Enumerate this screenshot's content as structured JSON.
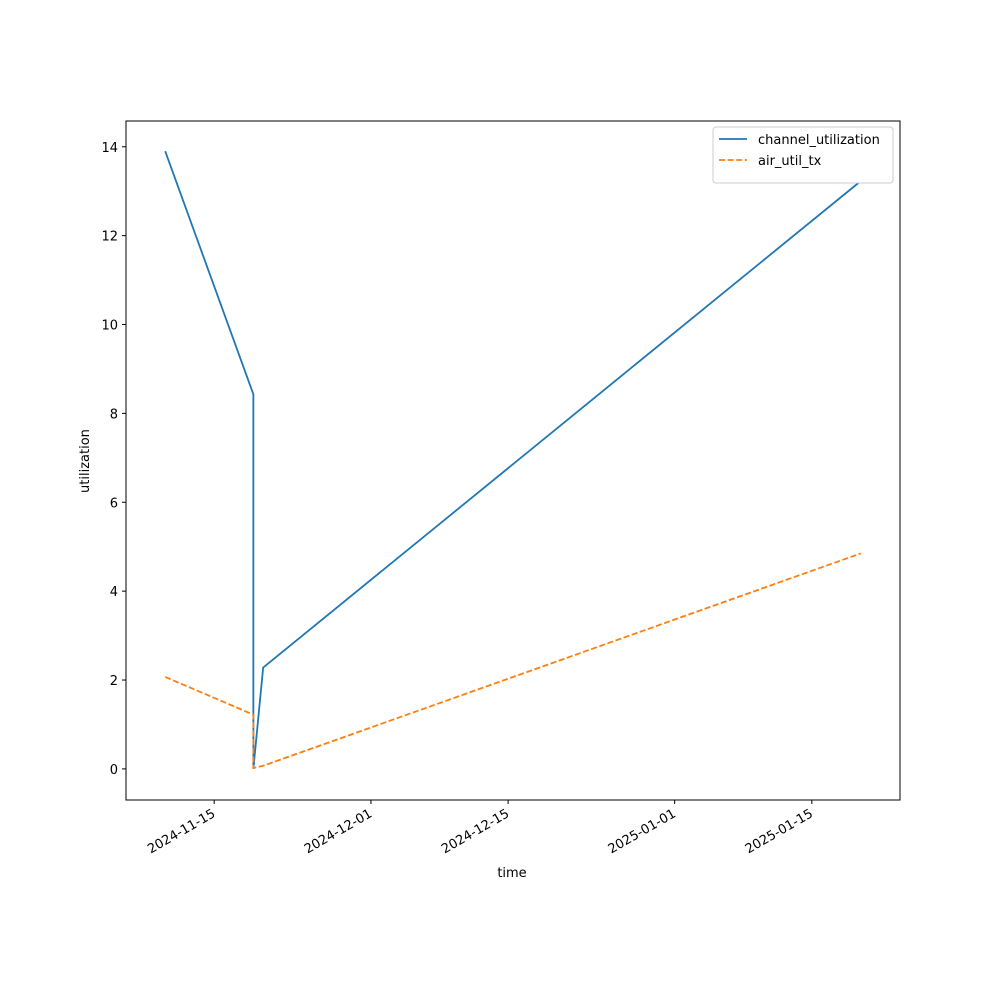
{
  "chart_data": {
    "type": "line",
    "x_label": "time",
    "y_label": "utilization",
    "x": [
      "2024-11-10",
      "2024-11-19",
      "2024-11-19",
      "2024-11-20",
      "2025-01-20"
    ],
    "series": [
      {
        "name": "channel_utilization",
        "color": "#1f77b4",
        "dash": "solid",
        "values": [
          13.9,
          8.43,
          0,
          2.28,
          13.23
        ]
      },
      {
        "name": "air_util_tx",
        "color": "#ff7f0e",
        "dash": "dashed",
        "values": [
          2.07,
          1.22,
          0.02,
          0.07,
          4.85
        ]
      }
    ],
    "xlim": [
      "2024-11-06",
      "2025-01-24"
    ],
    "xticks": [
      "2024-11-15",
      "2024-12-01",
      "2024-12-15",
      "2025-01-01",
      "2025-01-15"
    ],
    "ylim": [
      -0.7,
      14.58
    ],
    "yticks": [
      0,
      2,
      4,
      6,
      8,
      10,
      12,
      14
    ],
    "legend": "upper right",
    "grid": false
  }
}
